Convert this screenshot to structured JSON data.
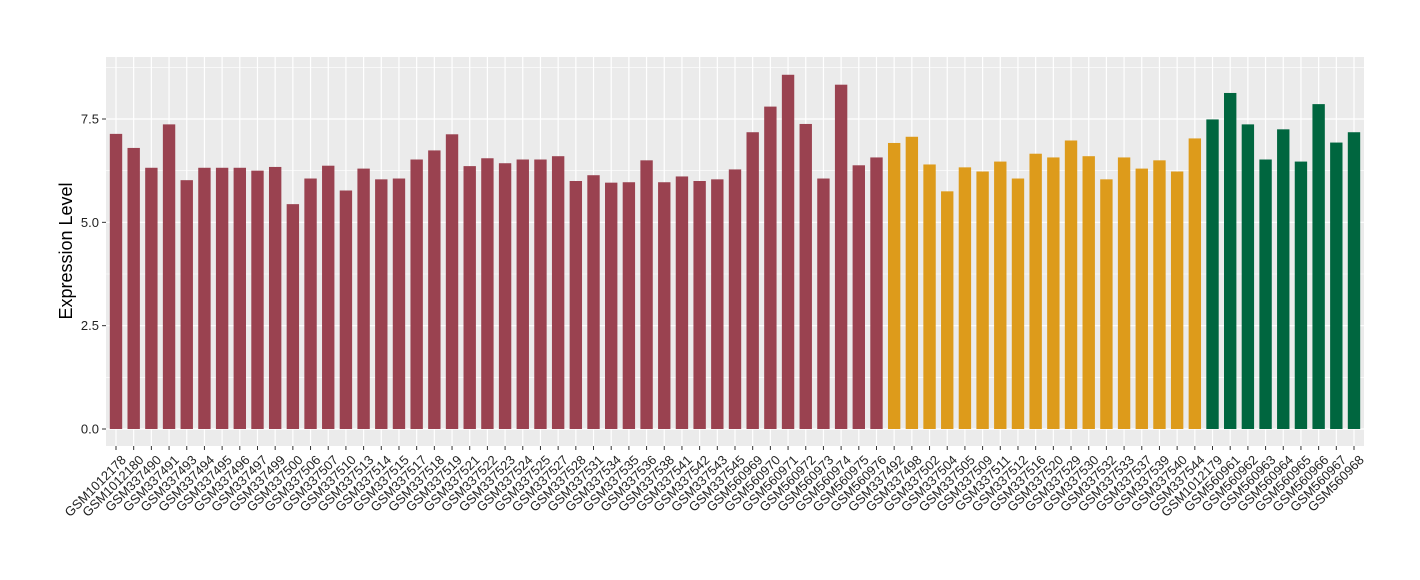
{
  "chart_data": {
    "type": "bar",
    "ylabel": "Expression Level",
    "xlabel": "",
    "ylim": [
      0,
      8.85
    ],
    "yticks": [
      0.0,
      2.5,
      5.0,
      7.5
    ],
    "ytick_labels": [
      "0.0",
      "2.5",
      "5.0",
      "7.5"
    ],
    "grid": true,
    "legend": "none",
    "panel_background": "#EBEBEB",
    "gridline_color": "#FFFFFF",
    "categories": [
      "GSM1012178",
      "GSM1012180",
      "GSM337490",
      "GSM337491",
      "GSM337493",
      "GSM337494",
      "GSM337495",
      "GSM337496",
      "GSM337497",
      "GSM337499",
      "GSM337500",
      "GSM337506",
      "GSM337507",
      "GSM337510",
      "GSM337513",
      "GSM337514",
      "GSM337515",
      "GSM337517",
      "GSM337518",
      "GSM337519",
      "GSM337521",
      "GSM337522",
      "GSM337523",
      "GSM337524",
      "GSM337525",
      "GSM337527",
      "GSM337528",
      "GSM337531",
      "GSM337534",
      "GSM337535",
      "GSM337536",
      "GSM337538",
      "GSM337541",
      "GSM337542",
      "GSM337543",
      "GSM337545",
      "GSM560969",
      "GSM560970",
      "GSM560971",
      "GSM560972",
      "GSM560973",
      "GSM560974",
      "GSM560975",
      "GSM560976",
      "GSM337492",
      "GSM337498",
      "GSM337502",
      "GSM337504",
      "GSM337505",
      "GSM337509",
      "GSM337511",
      "GSM337512",
      "GSM337516",
      "GSM337520",
      "GSM337529",
      "GSM337530",
      "GSM337532",
      "GSM337533",
      "GSM337537",
      "GSM337539",
      "GSM337540",
      "GSM337544",
      "GSM1012179",
      "GSM560961",
      "GSM560962",
      "GSM560963",
      "GSM560964",
      "GSM560965",
      "GSM560966",
      "GSM560967",
      "GSM560968"
    ],
    "values": [
      7.14,
      6.8,
      6.32,
      7.37,
      6.02,
      6.32,
      6.32,
      6.32,
      6.25,
      6.34,
      5.44,
      6.06,
      6.37,
      5.77,
      6.3,
      6.04,
      6.06,
      6.52,
      6.74,
      7.13,
      6.36,
      6.55,
      6.43,
      6.52,
      6.52,
      6.6,
      6.0,
      6.14,
      5.96,
      5.97,
      6.5,
      5.97,
      6.11,
      6.0,
      6.04,
      6.28,
      7.18,
      7.8,
      8.57,
      7.38,
      6.06,
      8.33,
      6.38,
      6.57,
      6.92,
      7.07,
      6.4,
      5.75,
      6.33,
      6.23,
      6.47,
      6.06,
      6.66,
      6.57,
      6.98,
      6.6,
      6.04,
      6.57,
      6.3,
      6.5,
      6.23,
      7.03,
      7.49,
      8.13,
      7.37,
      6.52,
      7.25,
      6.47,
      7.86,
      6.93,
      7.18
    ],
    "groups": [
      "1",
      "1",
      "1",
      "1",
      "1",
      "1",
      "1",
      "1",
      "1",
      "1",
      "1",
      "1",
      "1",
      "1",
      "1",
      "1",
      "1",
      "1",
      "1",
      "1",
      "1",
      "1",
      "1",
      "1",
      "1",
      "1",
      "1",
      "1",
      "1",
      "1",
      "1",
      "1",
      "1",
      "1",
      "1",
      "1",
      "1",
      "1",
      "1",
      "1",
      "1",
      "1",
      "1",
      "1",
      "2",
      "2",
      "2",
      "2",
      "2",
      "2",
      "2",
      "2",
      "2",
      "2",
      "2",
      "2",
      "2",
      "2",
      "2",
      "2",
      "2",
      "2",
      "3",
      "3",
      "3",
      "3",
      "3",
      "3",
      "3",
      "3",
      "3"
    ],
    "group_colors": {
      "1": "#9A4250",
      "2": "#DD9B1B",
      "3": "#00663F"
    }
  }
}
